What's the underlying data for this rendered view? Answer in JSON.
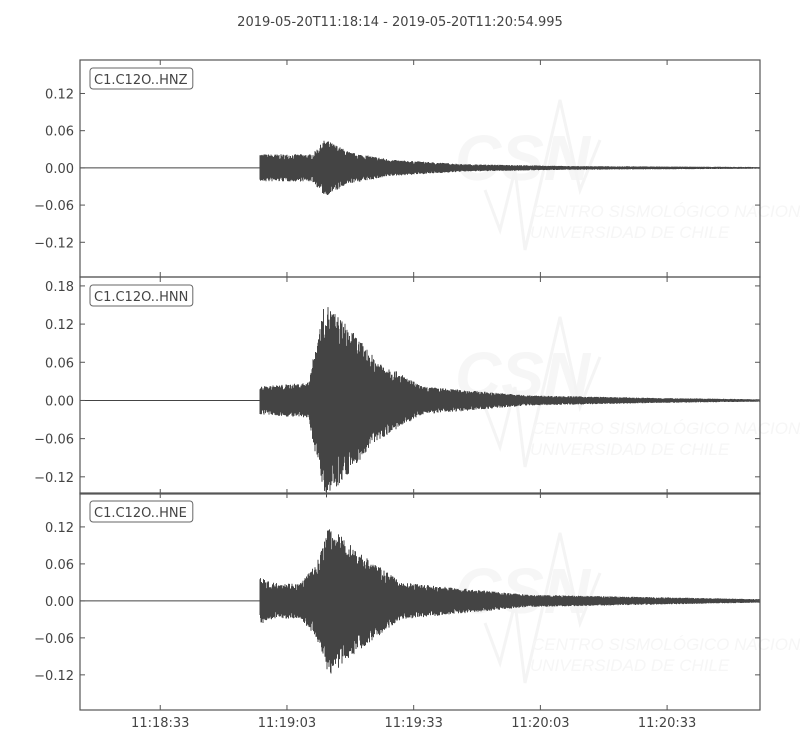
{
  "chart_data": {
    "type": "line",
    "title": "2019-05-20T11:18:14  -  2019-05-20T11:20:54.995",
    "x_range": [
      "11:18:14",
      "11:20:54.995"
    ],
    "x_ticks": [
      "11:18:33",
      "11:19:03",
      "11:19:33",
      "11:20:03",
      "11:20:33"
    ],
    "line_color": "#444444",
    "frame_color": "#555555",
    "grid": false,
    "watermark": {
      "logo": "CSN",
      "line1": "CENTRO SISMOLÓGICO NACIONAL",
      "line2": "UNIVERSIDAD DE CHILE"
    },
    "traces": [
      {
        "name": "C1.C12O..HNZ",
        "ylim": [
          -0.176,
          0.174
        ],
        "y_ticks": [
          0.12,
          0.06,
          0.0,
          -0.06,
          -0.12
        ],
        "y_tick_labels": [
          "0.12",
          "0.06",
          "0.00",
          "−0.06",
          "−0.12"
        ],
        "onset": "11:18:56.5",
        "peak_max": 0.047,
        "peak_min": -0.05,
        "envelope": [
          [
            "11:18:56.5",
            0.022
          ],
          [
            "11:19:09",
            0.022
          ],
          [
            "11:19:12",
            0.046
          ],
          [
            "11:19:18",
            0.025
          ],
          [
            "11:19:28",
            0.013
          ],
          [
            "11:19:45",
            0.006
          ],
          [
            "11:20:10",
            0.003
          ],
          [
            "11:20:54",
            0.0015
          ]
        ]
      },
      {
        "name": "C1.C12O..HNN",
        "ylim": [
          -0.147,
          0.194
        ],
        "y_ticks": [
          0.18,
          0.12,
          0.06,
          0.0,
          -0.06,
          -0.12
        ],
        "y_tick_labels": [
          "0.18",
          "0.12",
          "0.06",
          "0.00",
          "−0.06",
          "−0.12"
        ],
        "onset": "11:18:56.5",
        "peak_max": 0.16,
        "peak_min": -0.14,
        "envelope": [
          [
            "11:18:56.5",
            0.022
          ],
          [
            "11:19:08",
            0.028
          ],
          [
            "11:19:12",
            0.155
          ],
          [
            "11:19:17",
            0.12
          ],
          [
            "11:19:24",
            0.065
          ],
          [
            "11:19:35",
            0.022
          ],
          [
            "11:20:00",
            0.008
          ],
          [
            "11:20:30",
            0.004
          ],
          [
            "11:20:54",
            0.002
          ]
        ]
      },
      {
        "name": "C1.C12O..HNE",
        "ylim": [
          -0.177,
          0.175
        ],
        "y_ticks": [
          0.12,
          0.06,
          0.0,
          -0.06,
          -0.12
        ],
        "y_tick_labels": [
          "0.12",
          "0.06",
          "0.00",
          "−0.06",
          "−0.12"
        ],
        "onset": "11:18:56.5",
        "peak_max": 0.125,
        "peak_min": -0.12,
        "envelope": [
          [
            "11:18:56.5",
            0.04
          ],
          [
            "11:18:59",
            0.03
          ],
          [
            "11:19:06",
            0.028
          ],
          [
            "11:19:10",
            0.06
          ],
          [
            "11:19:13",
            0.122
          ],
          [
            "11:19:20",
            0.08
          ],
          [
            "11:19:30",
            0.03
          ],
          [
            "11:20:00",
            0.01
          ],
          [
            "11:20:54",
            0.003
          ]
        ]
      }
    ]
  }
}
